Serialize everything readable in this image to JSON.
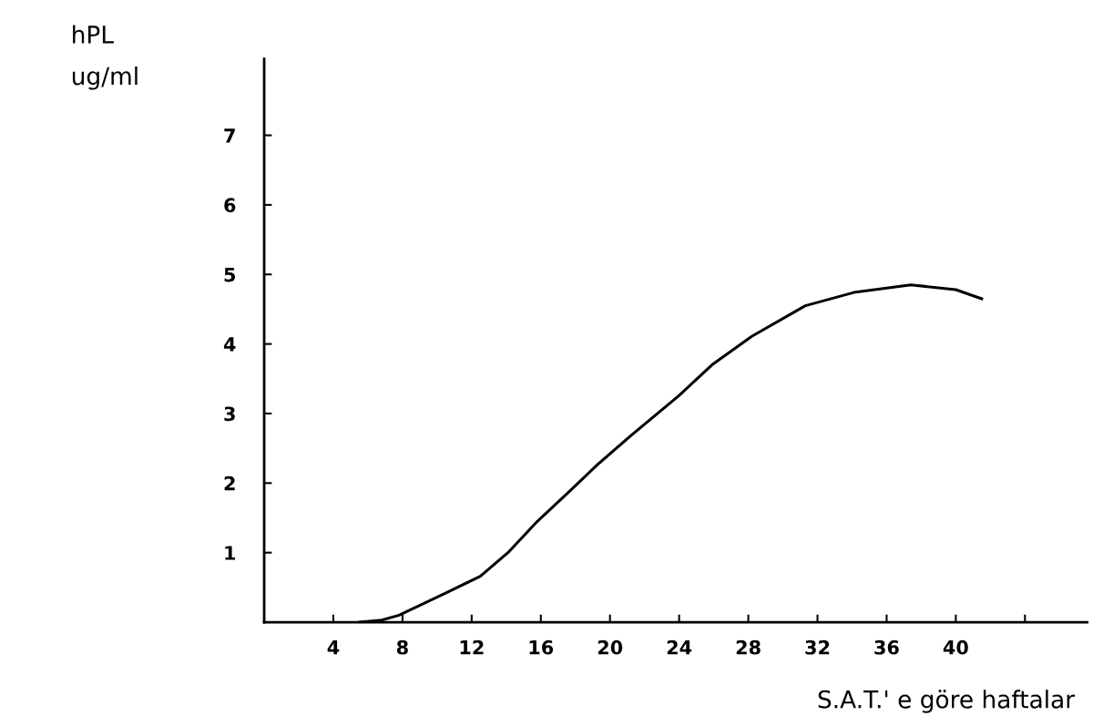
{
  "chart_data": {
    "type": "line",
    "xlabel": "S.A.T.' e göre haftalar",
    "ylabel": "hPL\nug/ml",
    "x": [
      5.5,
      6.8,
      7.8,
      10.6,
      12.5,
      14.1,
      15.8,
      17.7,
      19.3,
      21.2,
      24.0,
      25.9,
      28.2,
      31.3,
      34.1,
      37.4,
      40.0,
      41.5
    ],
    "series": [
      {
        "color": "#000000",
        "values": [
          0.0,
          0.03,
          0.1,
          0.43,
          0.66,
          1.0,
          1.45,
          1.89,
          2.27,
          2.68,
          3.26,
          3.7,
          4.11,
          4.55,
          4.74,
          4.85,
          4.78,
          4.65
        ]
      }
    ],
    "xlim": [
      0,
      47.6
    ],
    "ylim": [
      0,
      8.1
    ],
    "xticks": [
      4,
      8,
      12,
      16,
      20,
      24,
      28,
      32,
      36,
      40,
      {
        "value": 44,
        "label": null
      }
    ],
    "yticks": [
      1,
      2,
      3,
      4,
      5,
      6,
      7
    ],
    "grid": false,
    "legend": false,
    "marker": "none",
    "line_style": "solid"
  }
}
